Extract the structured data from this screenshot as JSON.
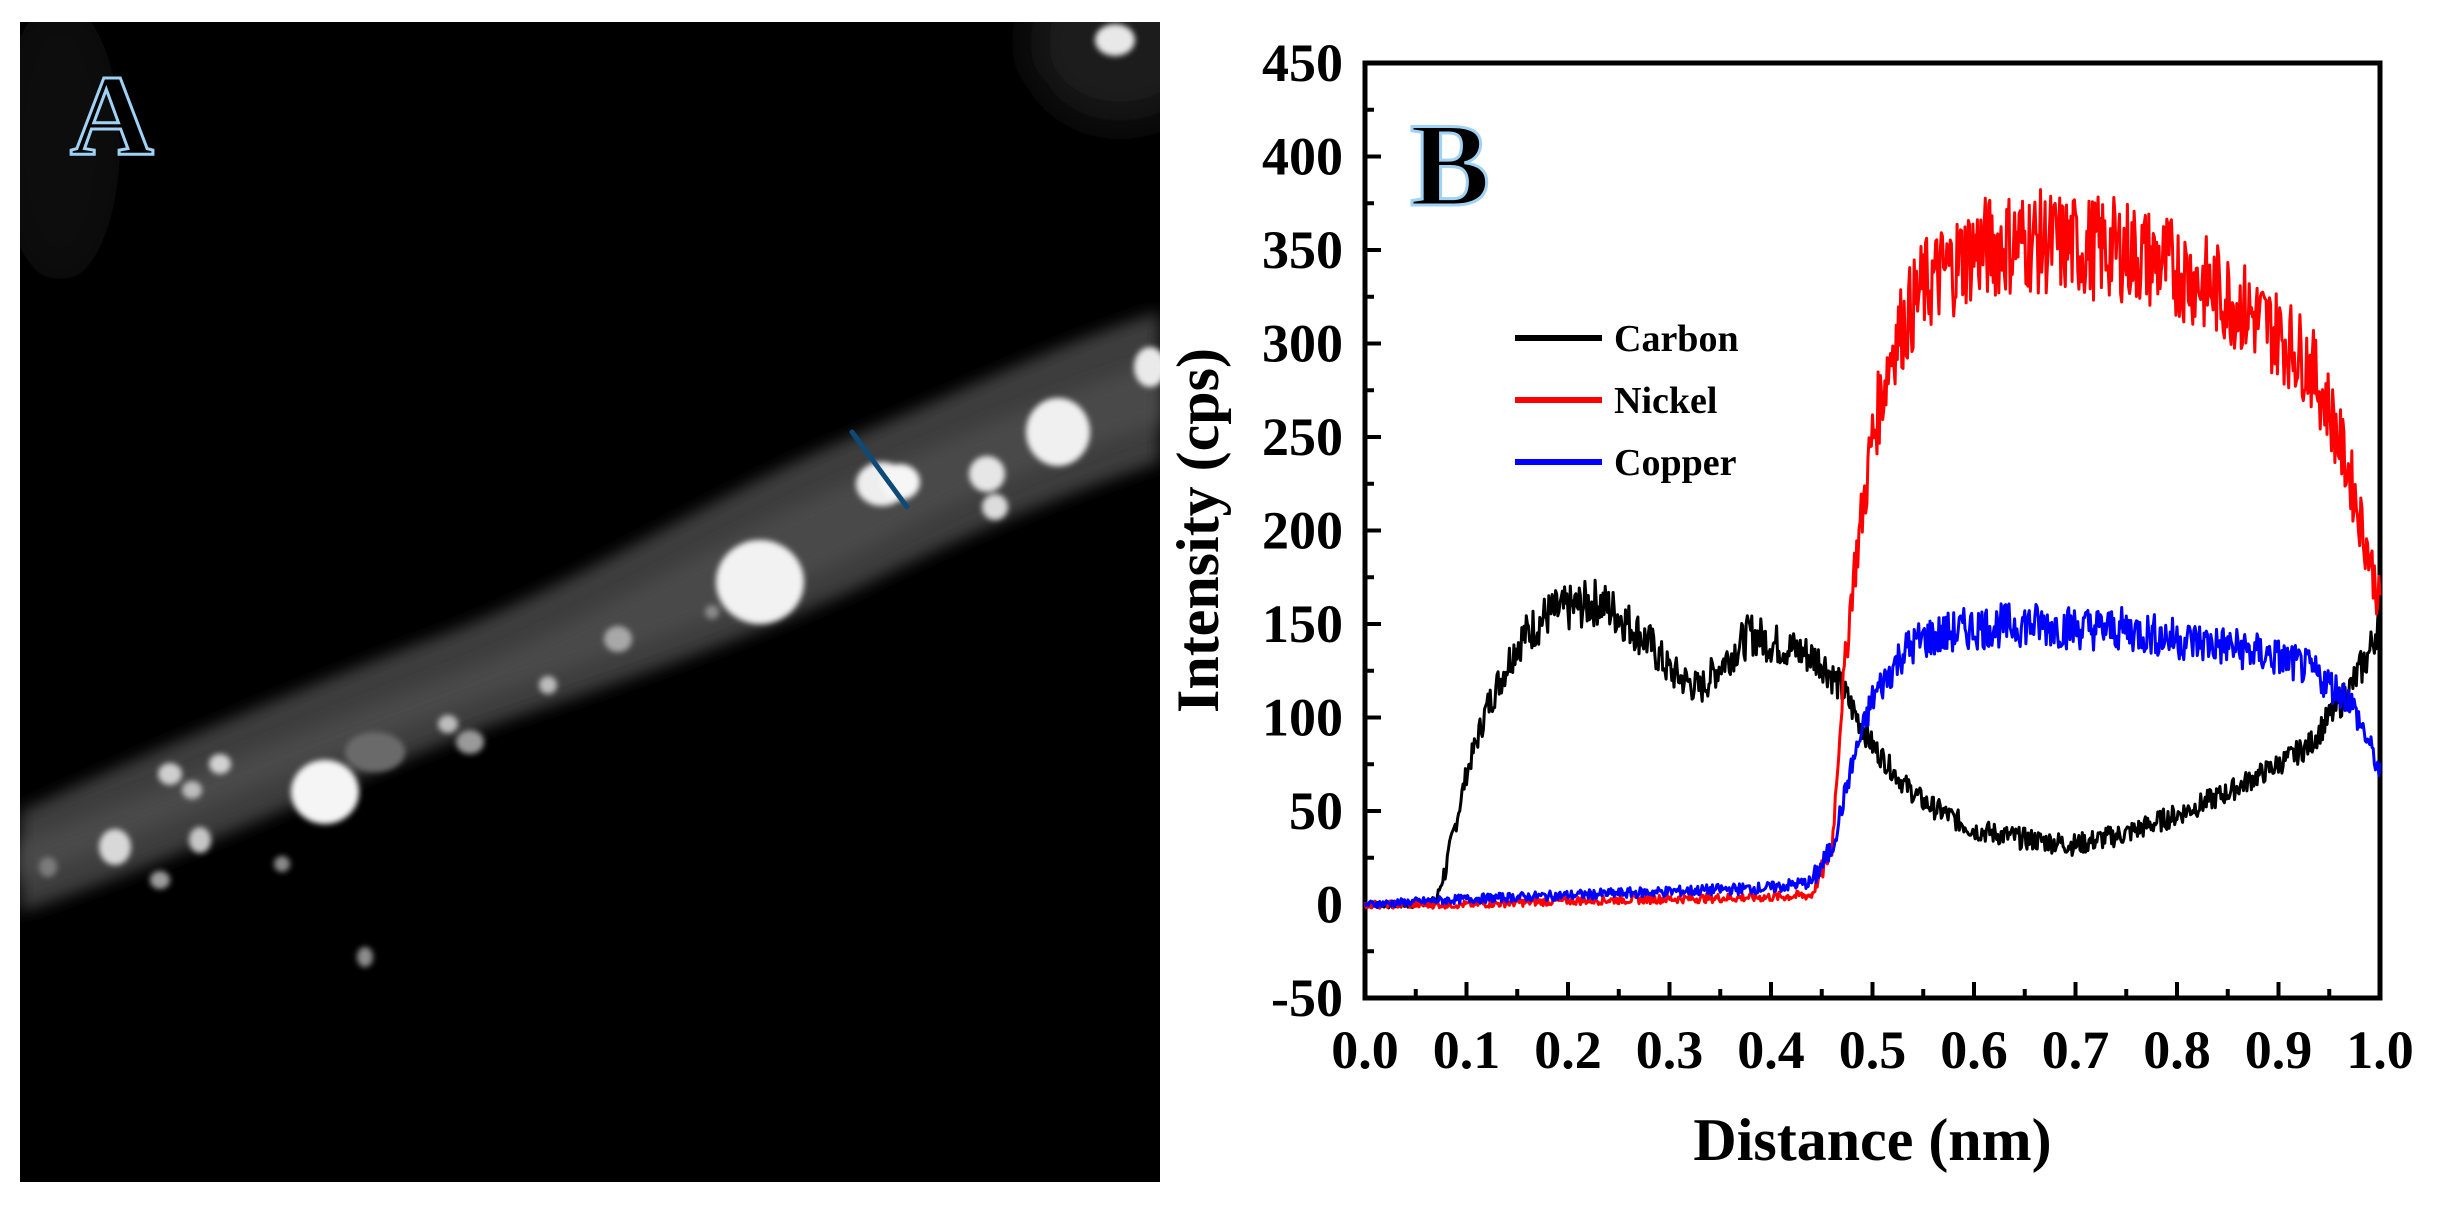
{
  "panel_a": {
    "label": "A"
  },
  "panel_b": {
    "label": "B"
  },
  "colors": {
    "carbon": "#000000",
    "nickel": "#ff0000",
    "copper": "#0000ff",
    "scan_line": "#0e4a78",
    "letter_outline": "#9fd2f5"
  },
  "chart_data": {
    "type": "line",
    "title": "",
    "xlabel": "Distance (nm)",
    "ylabel": "Intensity (cps)",
    "xlim": [
      0.0,
      1.0
    ],
    "ylim": [
      -50,
      450
    ],
    "xticks": [
      "0.0",
      "0.1",
      "0.2",
      "0.3",
      "0.4",
      "0.5",
      "0.6",
      "0.7",
      "0.8",
      "0.9",
      "1.0"
    ],
    "yticks": [
      "-50",
      "0",
      "50",
      "100",
      "150",
      "200",
      "250",
      "300",
      "350",
      "400",
      "450"
    ],
    "grid": false,
    "legend_position": "upper-left",
    "series": [
      {
        "name": "Carbon",
        "x": [
          0.0,
          0.05,
          0.07,
          0.08,
          0.1,
          0.12,
          0.15,
          0.18,
          0.2,
          0.23,
          0.25,
          0.28,
          0.3,
          0.33,
          0.35,
          0.38,
          0.4,
          0.43,
          0.45,
          0.47,
          0.5,
          0.53,
          0.55,
          0.6,
          0.65,
          0.7,
          0.75,
          0.8,
          0.85,
          0.9,
          0.93,
          0.95,
          0.97,
          0.99,
          1.0
        ],
        "values": [
          0,
          0,
          2,
          20,
          70,
          105,
          140,
          155,
          158,
          162,
          155,
          140,
          125,
          115,
          128,
          145,
          140,
          135,
          130,
          115,
          85,
          65,
          55,
          40,
          35,
          32,
          38,
          48,
          60,
          75,
          85,
          100,
          115,
          135,
          155
        ]
      },
      {
        "name": "Nickel",
        "x": [
          0.0,
          0.1,
          0.2,
          0.3,
          0.4,
          0.44,
          0.46,
          0.47,
          0.48,
          0.5,
          0.52,
          0.55,
          0.6,
          0.65,
          0.7,
          0.75,
          0.8,
          0.85,
          0.9,
          0.93,
          0.95,
          0.97,
          0.99,
          1.0
        ],
        "values": [
          0,
          0,
          2,
          3,
          4,
          5,
          30,
          110,
          170,
          250,
          300,
          330,
          350,
          355,
          352,
          350,
          340,
          325,
          305,
          290,
          265,
          230,
          185,
          160
        ]
      },
      {
        "name": "Copper",
        "x": [
          0.0,
          0.1,
          0.2,
          0.3,
          0.4,
          0.44,
          0.46,
          0.48,
          0.5,
          0.53,
          0.55,
          0.6,
          0.65,
          0.7,
          0.75,
          0.8,
          0.85,
          0.9,
          0.93,
          0.95,
          0.97,
          0.99,
          1.0
        ],
        "values": [
          0,
          3,
          5,
          7,
          9,
          12,
          30,
          75,
          110,
          135,
          142,
          148,
          150,
          148,
          147,
          142,
          138,
          132,
          126,
          118,
          110,
          85,
          70
        ]
      }
    ]
  }
}
